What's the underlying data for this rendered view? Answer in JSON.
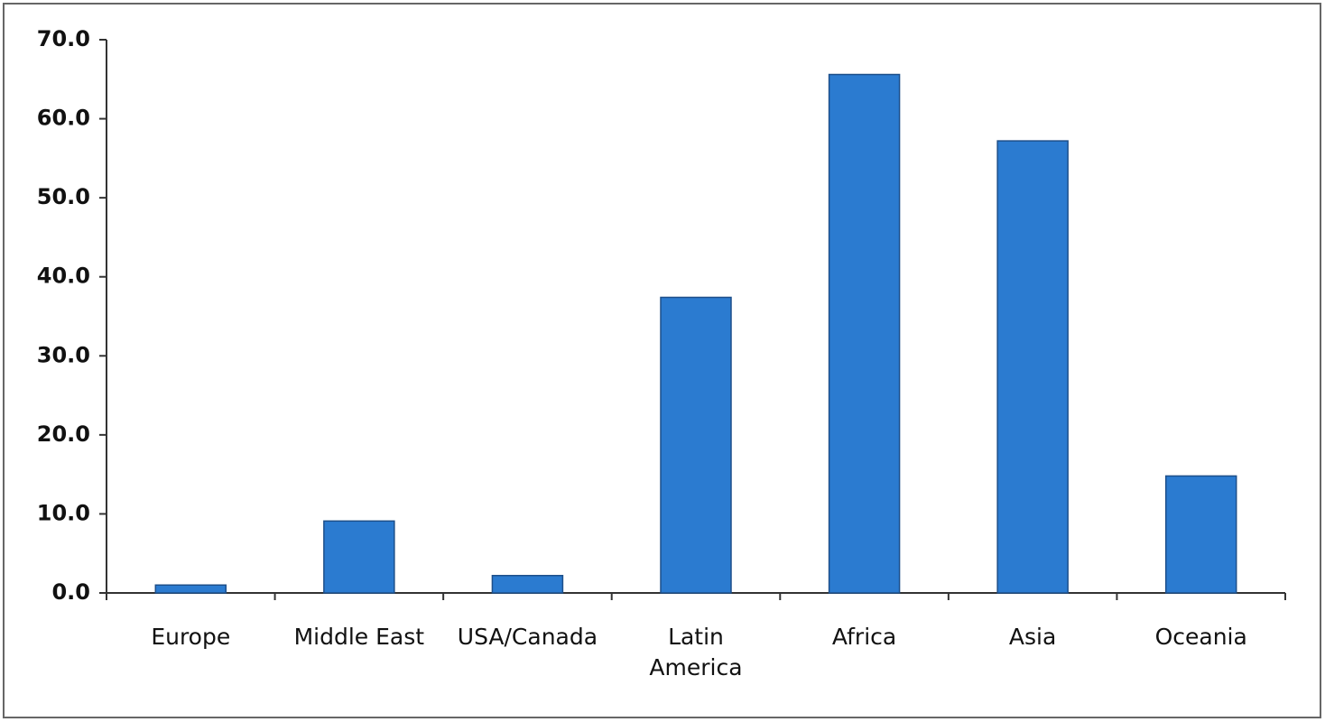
{
  "chart_data": {
    "type": "bar",
    "categories": [
      "Europe",
      "Middle East",
      "USA/Canada",
      "Latin America",
      "Africa",
      "Asia",
      "Oceania"
    ],
    "values": [
      1.0,
      9.1,
      2.2,
      37.4,
      65.6,
      57.2,
      14.8
    ],
    "color": "#2b7bd0",
    "ylim": [
      0,
      70
    ],
    "yticks": [
      {
        "value": 0,
        "label": "0.0"
      },
      {
        "value": 10,
        "label": "10.0"
      },
      {
        "value": 20,
        "label": "20.0"
      },
      {
        "value": 30,
        "label": "30.0"
      },
      {
        "value": 40,
        "label": "40.0"
      },
      {
        "value": 50,
        "label": "50.0"
      },
      {
        "value": 60,
        "label": "60.0"
      },
      {
        "value": 70,
        "label": "70.0"
      }
    ]
  }
}
